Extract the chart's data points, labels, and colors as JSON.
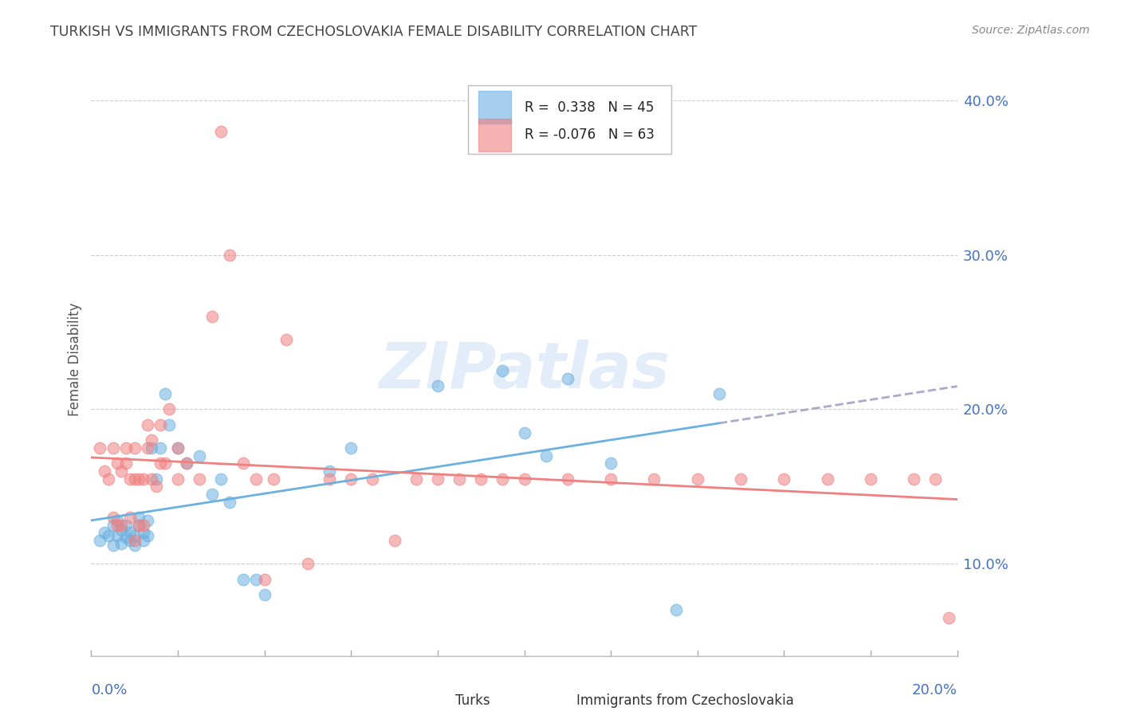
{
  "title": "TURKISH VS IMMIGRANTS FROM CZECHOSLOVAKIA FEMALE DISABILITY CORRELATION CHART",
  "source": "Source: ZipAtlas.com",
  "ylabel": "Female Disability",
  "xlim": [
    0.0,
    0.2
  ],
  "ylim": [
    0.04,
    0.425
  ],
  "yticks": [
    0.1,
    0.2,
    0.3,
    0.4
  ],
  "ytick_labels": [
    "10.0%",
    "20.0%",
    "30.0%",
    "40.0%"
  ],
  "turks_color": "#6ab0e0",
  "czech_color": "#f08080",
  "turks_R": 0.338,
  "turks_N": 45,
  "czech_R": -0.076,
  "czech_N": 63,
  "legend_label_turks": "Turks",
  "legend_label_czech": "Immigrants from Czechoslovakia",
  "turks_scatter_x": [
    0.002,
    0.003,
    0.004,
    0.005,
    0.005,
    0.006,
    0.006,
    0.007,
    0.007,
    0.008,
    0.008,
    0.009,
    0.009,
    0.01,
    0.01,
    0.011,
    0.011,
    0.012,
    0.012,
    0.013,
    0.013,
    0.014,
    0.015,
    0.016,
    0.017,
    0.018,
    0.02,
    0.022,
    0.025,
    0.028,
    0.03,
    0.032,
    0.035,
    0.038,
    0.04,
    0.055,
    0.06,
    0.08,
    0.095,
    0.1,
    0.105,
    0.11,
    0.12,
    0.135,
    0.145
  ],
  "turks_scatter_y": [
    0.115,
    0.12,
    0.118,
    0.112,
    0.125,
    0.118,
    0.128,
    0.113,
    0.122,
    0.117,
    0.125,
    0.115,
    0.12,
    0.112,
    0.118,
    0.125,
    0.13,
    0.115,
    0.12,
    0.118,
    0.128,
    0.175,
    0.155,
    0.175,
    0.21,
    0.19,
    0.175,
    0.165,
    0.17,
    0.145,
    0.155,
    0.14,
    0.09,
    0.09,
    0.08,
    0.16,
    0.175,
    0.215,
    0.225,
    0.185,
    0.17,
    0.22,
    0.165,
    0.07,
    0.21
  ],
  "czech_scatter_x": [
    0.002,
    0.003,
    0.004,
    0.005,
    0.005,
    0.006,
    0.006,
    0.007,
    0.007,
    0.008,
    0.008,
    0.009,
    0.009,
    0.01,
    0.01,
    0.01,
    0.011,
    0.011,
    0.012,
    0.012,
    0.013,
    0.013,
    0.014,
    0.014,
    0.015,
    0.016,
    0.016,
    0.017,
    0.018,
    0.02,
    0.02,
    0.022,
    0.025,
    0.028,
    0.03,
    0.032,
    0.035,
    0.038,
    0.04,
    0.042,
    0.045,
    0.05,
    0.055,
    0.06,
    0.065,
    0.07,
    0.075,
    0.08,
    0.085,
    0.09,
    0.095,
    0.1,
    0.11,
    0.12,
    0.13,
    0.14,
    0.15,
    0.16,
    0.17,
    0.18,
    0.19,
    0.195,
    0.198
  ],
  "czech_scatter_y": [
    0.175,
    0.16,
    0.155,
    0.13,
    0.175,
    0.125,
    0.165,
    0.125,
    0.16,
    0.165,
    0.175,
    0.13,
    0.155,
    0.115,
    0.155,
    0.175,
    0.125,
    0.155,
    0.125,
    0.155,
    0.175,
    0.19,
    0.155,
    0.18,
    0.15,
    0.19,
    0.165,
    0.165,
    0.2,
    0.155,
    0.175,
    0.165,
    0.155,
    0.26,
    0.38,
    0.3,
    0.165,
    0.155,
    0.09,
    0.155,
    0.245,
    0.1,
    0.155,
    0.155,
    0.155,
    0.115,
    0.155,
    0.155,
    0.155,
    0.155,
    0.155,
    0.155,
    0.155,
    0.155,
    0.155,
    0.155,
    0.155,
    0.155,
    0.155,
    0.155,
    0.155,
    0.155,
    0.065
  ],
  "background_color": "#ffffff",
  "grid_color": "#cccccc",
  "title_color": "#444444",
  "axis_label_color": "#4472c4",
  "watermark_color": "#ccddf5"
}
